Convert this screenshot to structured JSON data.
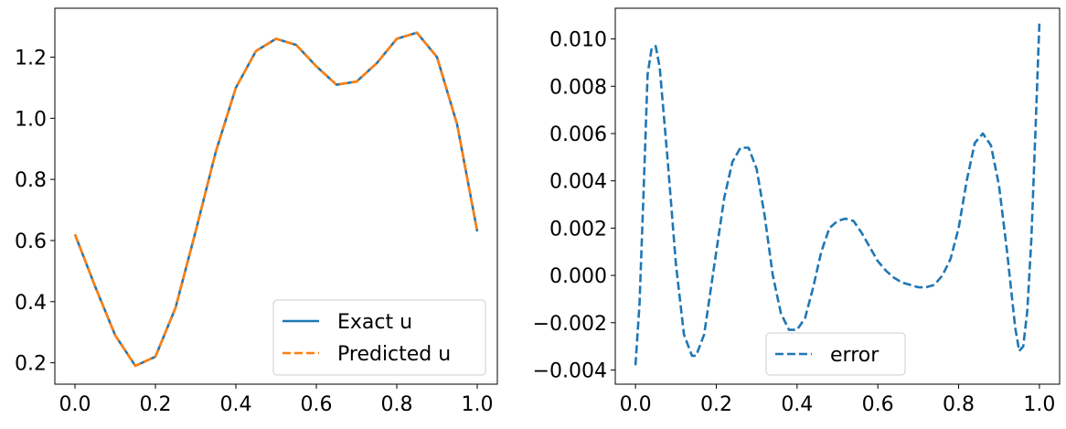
{
  "chart_data": [
    {
      "type": "line",
      "xlim": [
        -0.05,
        1.05
      ],
      "ylim": [
        0.13,
        1.36
      ],
      "xticks": [
        0.0,
        0.2,
        0.4,
        0.6,
        0.8,
        1.0
      ],
      "xtick_labels": [
        "0.0",
        "0.2",
        "0.4",
        "0.6",
        "0.8",
        "1.0"
      ],
      "yticks": [
        0.2,
        0.4,
        0.6,
        0.8,
        1.0,
        1.2
      ],
      "ytick_labels": [
        "0.2",
        "0.4",
        "0.6",
        "0.8",
        "1.0",
        "1.2"
      ],
      "grid": false,
      "legend": "lower-right",
      "series": [
        {
          "name": "Exact u",
          "color": "#1f77b4",
          "style": "solid",
          "x": [
            0.0,
            0.05,
            0.1,
            0.15,
            0.2,
            0.25,
            0.3,
            0.35,
            0.4,
            0.45,
            0.5,
            0.55,
            0.6,
            0.65,
            0.7,
            0.75,
            0.8,
            0.85,
            0.9,
            0.95,
            1.0
          ],
          "y": [
            0.62,
            0.45,
            0.29,
            0.19,
            0.22,
            0.38,
            0.63,
            0.89,
            1.1,
            1.22,
            1.26,
            1.24,
            1.17,
            1.11,
            1.12,
            1.18,
            1.26,
            1.28,
            1.2,
            0.98,
            0.63
          ]
        },
        {
          "name": "Predicted u",
          "color": "#ff7f0e",
          "style": "dashed",
          "x": [
            0.0,
            0.05,
            0.1,
            0.15,
            0.2,
            0.25,
            0.3,
            0.35,
            0.4,
            0.45,
            0.5,
            0.55,
            0.6,
            0.65,
            0.7,
            0.75,
            0.8,
            0.85,
            0.9,
            0.95,
            1.0
          ],
          "y": [
            0.62,
            0.45,
            0.29,
            0.19,
            0.22,
            0.38,
            0.63,
            0.89,
            1.1,
            1.22,
            1.26,
            1.24,
            1.17,
            1.11,
            1.12,
            1.18,
            1.26,
            1.28,
            1.2,
            0.98,
            0.63
          ]
        }
      ]
    },
    {
      "type": "line",
      "xlim": [
        -0.05,
        1.05
      ],
      "ylim": [
        -0.0046,
        0.0113
      ],
      "xticks": [
        0.0,
        0.2,
        0.4,
        0.6,
        0.8,
        1.0
      ],
      "xtick_labels": [
        "0.0",
        "0.2",
        "0.4",
        "0.6",
        "0.8",
        "1.0"
      ],
      "yticks": [
        -0.004,
        -0.002,
        0.0,
        0.002,
        0.004,
        0.006,
        0.008,
        0.01
      ],
      "ytick_labels": [
        "−0.004",
        "−0.002",
        "0.000",
        "0.002",
        "0.004",
        "0.006",
        "0.008",
        "0.010"
      ],
      "grid": false,
      "legend": "lower-center",
      "series": [
        {
          "name": "error",
          "color": "#1f77b4",
          "style": "dashed",
          "x": [
            0.0,
            0.01,
            0.02,
            0.03,
            0.04,
            0.05,
            0.06,
            0.08,
            0.1,
            0.12,
            0.14,
            0.15,
            0.17,
            0.2,
            0.22,
            0.24,
            0.26,
            0.28,
            0.3,
            0.32,
            0.34,
            0.36,
            0.38,
            0.4,
            0.42,
            0.44,
            0.46,
            0.48,
            0.5,
            0.52,
            0.54,
            0.56,
            0.58,
            0.6,
            0.62,
            0.64,
            0.66,
            0.68,
            0.7,
            0.72,
            0.74,
            0.76,
            0.78,
            0.8,
            0.82,
            0.84,
            0.86,
            0.88,
            0.9,
            0.92,
            0.94,
            0.95,
            0.96,
            0.97,
            0.98,
            0.99,
            1.0
          ],
          "y": [
            -0.0038,
            -0.0012,
            0.0035,
            0.0085,
            0.0096,
            0.0097,
            0.0088,
            0.0048,
            0.0005,
            -0.0025,
            -0.0034,
            -0.0034,
            -0.0025,
            0.001,
            0.0033,
            0.0048,
            0.0054,
            0.0054,
            0.0045,
            0.0025,
            0.0,
            -0.0016,
            -0.0023,
            -0.0023,
            -0.0018,
            -0.0005,
            0.001,
            0.002,
            0.0023,
            0.0024,
            0.0023,
            0.0018,
            0.0012,
            0.0006,
            0.0002,
            -0.0001,
            -0.0003,
            -0.0004,
            -0.0005,
            -0.0005,
            -0.0004,
            0.0,
            0.0007,
            0.002,
            0.004,
            0.0056,
            0.006,
            0.0055,
            0.0038,
            0.001,
            -0.0022,
            -0.0032,
            -0.003,
            -0.0015,
            0.0015,
            0.006,
            0.0107
          ]
        }
      ]
    }
  ]
}
